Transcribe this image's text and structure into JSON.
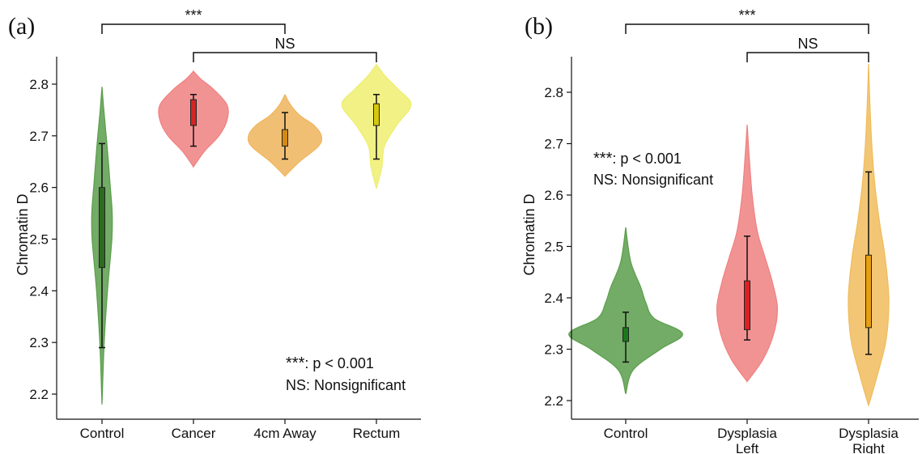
{
  "chart_data": [
    {
      "type": "violin",
      "panel_label": "(a)",
      "ylabel": "Chromatin D",
      "xlabel": "",
      "ylim": [
        2.17,
        2.85
      ],
      "yticks": [
        2.2,
        2.3,
        2.4,
        2.5,
        2.6,
        2.7,
        2.8
      ],
      "grid": false,
      "categories": [
        "Control",
        "Cancer",
        "4cm Away",
        "Rectum"
      ],
      "series": [
        {
          "category": "Control",
          "color": "#5a9e4b",
          "box_color": "#2e6b22",
          "min": 2.18,
          "max": 2.795,
          "whisker_low": 2.29,
          "whisker_high": 2.685,
          "q1": 2.445,
          "median": 2.53,
          "q3": 2.6,
          "density_y": [
            2.18,
            2.3,
            2.4,
            2.5,
            2.55,
            2.6,
            2.68,
            2.75,
            2.795
          ],
          "density_w": [
            0.0,
            0.06,
            0.15,
            0.27,
            0.28,
            0.23,
            0.14,
            0.05,
            0.0
          ]
        },
        {
          "category": "Cancer",
          "color": "#f08080",
          "box_color": "#d42424",
          "min": 2.64,
          "max": 2.825,
          "whisker_low": 2.68,
          "whisker_high": 2.78,
          "q1": 2.72,
          "median": 2.74,
          "q3": 2.77,
          "density_y": [
            2.64,
            2.67,
            2.7,
            2.73,
            2.76,
            2.79,
            2.81,
            2.825
          ],
          "density_w": [
            0.0,
            0.3,
            0.7,
            0.92,
            0.92,
            0.55,
            0.2,
            0.0
          ]
        },
        {
          "category": "4cm Away",
          "color": "#efb45c",
          "box_color": "#d48a10",
          "min": 2.622,
          "max": 2.78,
          "whisker_low": 2.655,
          "whisker_high": 2.745,
          "q1": 2.68,
          "median": 2.695,
          "q3": 2.712,
          "density_y": [
            2.622,
            2.65,
            2.68,
            2.7,
            2.72,
            2.74,
            2.76,
            2.78
          ],
          "density_w": [
            0.0,
            0.4,
            0.92,
            1.0,
            0.8,
            0.4,
            0.15,
            0.0
          ]
        },
        {
          "category": "Rectum",
          "color": "#eeee70",
          "box_color": "#d8c80c",
          "min": 2.598,
          "max": 2.838,
          "whisker_low": 2.655,
          "whisker_high": 2.78,
          "q1": 2.72,
          "median": 2.74,
          "q3": 2.762,
          "density_y": [
            2.598,
            2.64,
            2.68,
            2.72,
            2.76,
            2.79,
            2.815,
            2.838
          ],
          "density_w": [
            0.0,
            0.15,
            0.22,
            0.55,
            0.95,
            0.6,
            0.25,
            0.0
          ]
        }
      ],
      "brackets": [
        {
          "from": "Control",
          "to": "4cm Away",
          "label": "***"
        },
        {
          "from": "Cancer",
          "to": "Rectum",
          "label": "NS"
        }
      ],
      "legend_note": [
        "***",
        ": p < 0.001",
        "NS: Nonsignificant"
      ]
    },
    {
      "type": "violin",
      "panel_label": "(b)",
      "ylabel": "Chromatin D",
      "xlabel": "",
      "ylim": [
        2.18,
        2.87
      ],
      "yticks": [
        2.2,
        2.3,
        2.4,
        2.5,
        2.6,
        2.7,
        2.8
      ],
      "grid": false,
      "categories": [
        [
          "Control"
        ],
        [
          "Dysplasia",
          "Left"
        ],
        [
          "Dysplasia",
          "Right"
        ]
      ],
      "series": [
        {
          "category": "Control",
          "color": "#5a9e4b",
          "box_color": "#1a7a1a",
          "min": 2.213,
          "max": 2.537,
          "whisker_low": 2.275,
          "whisker_high": 2.372,
          "q1": 2.315,
          "median": 2.325,
          "q3": 2.342,
          "density_y": [
            2.213,
            2.26,
            2.3,
            2.33,
            2.36,
            2.39,
            2.42,
            2.47,
            2.537
          ],
          "density_w": [
            0.0,
            0.12,
            0.55,
            0.9,
            0.45,
            0.32,
            0.24,
            0.08,
            0.0
          ]
        },
        {
          "category": "Dysplasia Left",
          "color": "#f08080",
          "box_color": "#e02020",
          "min": 2.237,
          "max": 2.737,
          "whisker_low": 2.318,
          "whisker_high": 2.52,
          "q1": 2.338,
          "median": 2.37,
          "q3": 2.433,
          "density_y": [
            2.237,
            2.28,
            2.33,
            2.38,
            2.43,
            2.48,
            2.53,
            2.6,
            2.68,
            2.737
          ],
          "density_w": [
            0.0,
            0.25,
            0.42,
            0.48,
            0.4,
            0.28,
            0.16,
            0.08,
            0.03,
            0.0
          ]
        },
        {
          "category": "Dysplasia Right",
          "color": "#f0bc5c",
          "box_color": "#e8a010",
          "min": 2.19,
          "max": 2.855,
          "whisker_low": 2.29,
          "whisker_high": 2.645,
          "q1": 2.342,
          "median": 2.41,
          "q3": 2.483,
          "density_y": [
            2.19,
            2.25,
            2.32,
            2.4,
            2.48,
            2.55,
            2.62,
            2.7,
            2.78,
            2.855
          ],
          "density_w": [
            0.0,
            0.14,
            0.28,
            0.32,
            0.26,
            0.17,
            0.1,
            0.05,
            0.02,
            0.0
          ]
        }
      ],
      "brackets": [
        {
          "from": "Control",
          "to": "Dysplasia Right",
          "label": "***"
        },
        {
          "from": "Dysplasia Left",
          "to": "Dysplasia Right",
          "label": "NS"
        }
      ],
      "legend_note": [
        "***",
        ": p < 0.001",
        "NS: Nonsignificant"
      ]
    }
  ]
}
